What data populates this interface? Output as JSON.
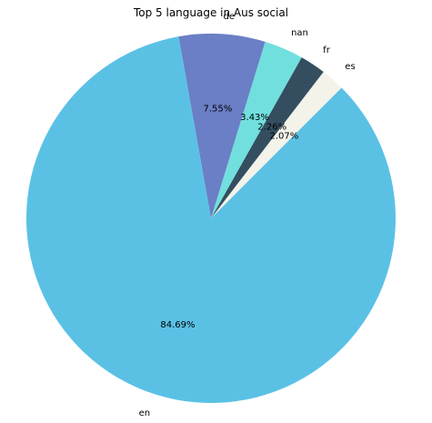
{
  "chart_data": {
    "type": "pie",
    "title": "Top 5 language in Aus social",
    "start_angle_deg": 45,
    "direction": "counterclockwise",
    "slices": [
      {
        "label": "es",
        "value": 2.07,
        "pct_text": "2.07%",
        "color": "#f3f3ea"
      },
      {
        "label": "fr",
        "value": 2.26,
        "pct_text": "2.26%",
        "color": "#344e60"
      },
      {
        "label": "nan",
        "value": 3.43,
        "pct_text": "3.43%",
        "color": "#71dfde"
      },
      {
        "label": "de",
        "value": 7.55,
        "pct_text": "7.55%",
        "color": "#6a7fc5"
      },
      {
        "label": "en",
        "value": 84.69,
        "pct_text": "84.69%",
        "color": "#5ac1e5"
      }
    ]
  }
}
